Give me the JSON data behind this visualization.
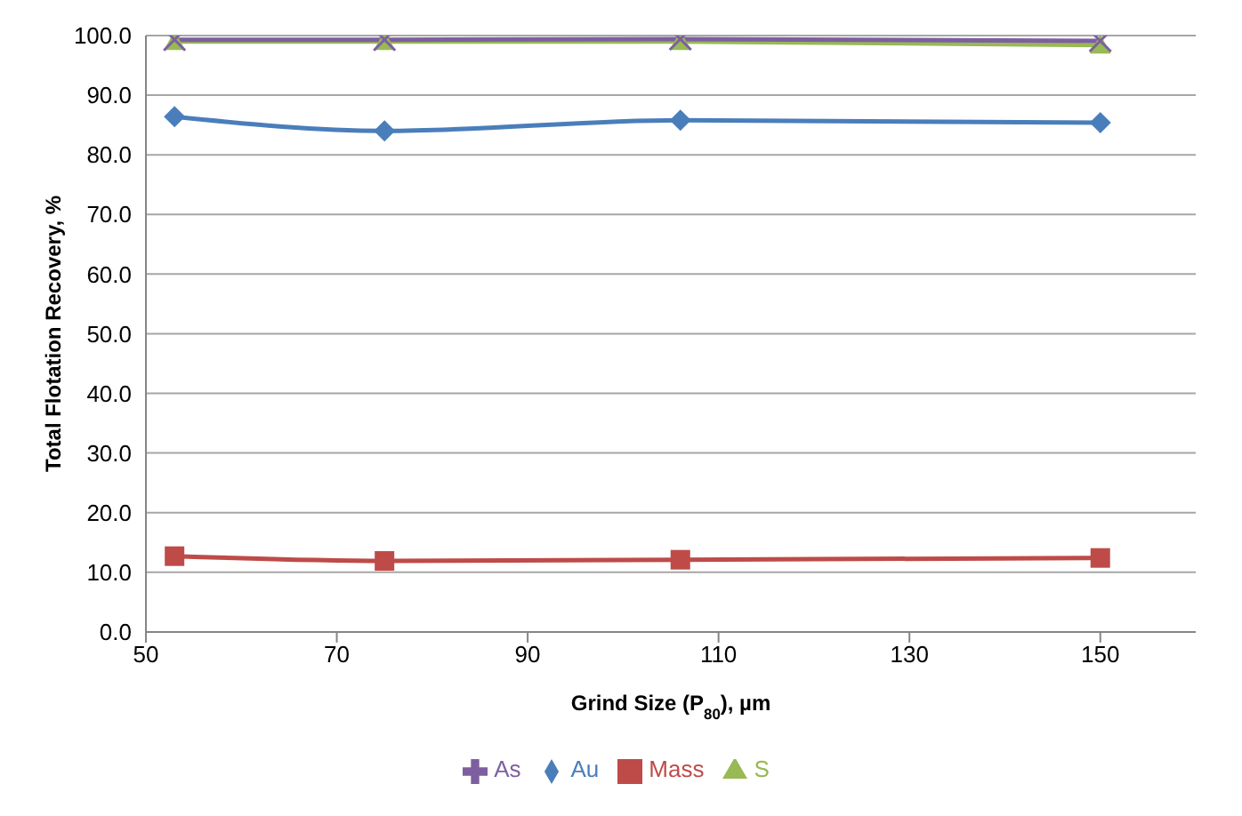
{
  "chart_data": {
    "type": "line",
    "xlabel": "Grind Size (P$_{80}$), µm",
    "ylabel": "Total Flotation Recovery, %",
    "x": [
      53,
      75,
      106,
      150
    ],
    "series": [
      {
        "name": "Au",
        "color": "#4a7ebb",
        "marker": "diamond",
        "values": [
          86.4,
          84.0,
          85.8,
          85.4
        ]
      },
      {
        "name": "S",
        "color": "#98b954",
        "marker": "triangle",
        "values": [
          99.0,
          99.0,
          99.0,
          98.4
        ]
      },
      {
        "name": "As",
        "color": "#7d5fa0",
        "marker": "cross",
        "values": [
          99.3,
          99.3,
          99.4,
          99.1
        ]
      },
      {
        "name": "Mass",
        "color": "#be4b48",
        "marker": "square",
        "values": [
          12.7,
          11.9,
          12.1,
          12.4
        ]
      }
    ],
    "xlim": [
      50,
      160
    ],
    "xticks": [
      50,
      70,
      90,
      110,
      130,
      150
    ],
    "ylim": [
      0,
      100
    ],
    "yticks": [
      {
        "value": 0,
        "label": "0.0"
      },
      {
        "value": 10,
        "label": "10.0"
      },
      {
        "value": 20,
        "label": "20.0"
      },
      {
        "value": 30,
        "label": "30.0"
      },
      {
        "value": 40,
        "label": "40.0"
      },
      {
        "value": 50,
        "label": "50.0"
      },
      {
        "value": 60,
        "label": "60.0"
      },
      {
        "value": 70,
        "label": "70.0"
      },
      {
        "value": 80,
        "label": "80.0"
      },
      {
        "value": 90,
        "label": "90.0"
      },
      {
        "value": 100,
        "label": "100.0"
      }
    ],
    "grid": "y",
    "legend": "bottom",
    "line_style": "solid"
  }
}
